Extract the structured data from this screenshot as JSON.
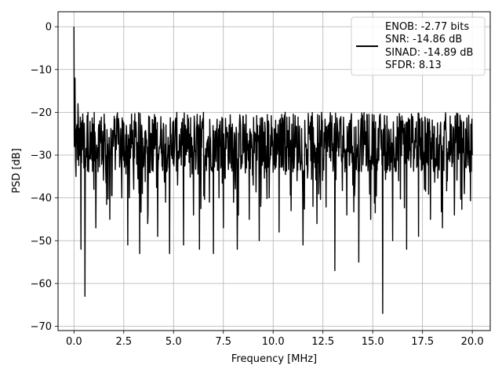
{
  "chart_data": {
    "type": "line",
    "title": "",
    "xlabel": "Frequency [MHz]",
    "ylabel": "PSD [dB]",
    "xlim": [
      -0.8,
      20.9
    ],
    "ylim": [
      -71,
      3.5
    ],
    "xticks": [
      0.0,
      2.5,
      5.0,
      7.5,
      10.0,
      12.5,
      15.0,
      17.5,
      20.0
    ],
    "xtick_labels": [
      "0.0",
      "2.5",
      "5.0",
      "7.5",
      "10.0",
      "12.5",
      "15.0",
      "17.5",
      "20.0"
    ],
    "yticks": [
      0,
      -10,
      -20,
      -30,
      -40,
      -50,
      -60,
      -70
    ],
    "ytick_labels": [
      "0",
      "−10",
      "−20",
      "−30",
      "−40",
      "−50",
      "−60",
      "−70"
    ],
    "grid": true,
    "legend_position": "top-right",
    "line_color": "#000000",
    "legend": [
      "ENOB: -2.77 bits",
      "SNR: -14.86 dB",
      "SINAD: -14.89 dB",
      "SFDR: 8.13"
    ],
    "series": [
      {
        "x": [
          0.0,
          0.02,
          0.05,
          0.1,
          0.2,
          0.3,
          0.35,
          0.4,
          0.5,
          0.55,
          0.7,
          1.0,
          1.1,
          1.3,
          1.5,
          1.8,
          2.2,
          2.4,
          2.7,
          2.8,
          3.0,
          3.3,
          3.4,
          3.7,
          3.9,
          4.2,
          4.4,
          4.6,
          4.8,
          5.0,
          5.2,
          5.5,
          5.8,
          6.0,
          6.3,
          6.5,
          6.8,
          7.0,
          7.3,
          7.5,
          7.9,
          8.2,
          8.5,
          8.8,
          9.0,
          9.3,
          9.6,
          9.8,
          10.0,
          10.3,
          10.6,
          10.9,
          11.2,
          11.5,
          11.8,
          12.0,
          12.2,
          12.5,
          12.8,
          13.1,
          13.4,
          13.7,
          14.0,
          14.3,
          14.6,
          14.9,
          15.2,
          15.5,
          15.8,
          16.0,
          16.3,
          16.7,
          17.0,
          17.3,
          17.6,
          17.9,
          18.2,
          18.5,
          18.8,
          19.1,
          19.4,
          19.6,
          19.8,
          20.0
        ],
        "y": [
          0,
          -28,
          -12,
          -35,
          -18,
          -30,
          -52,
          -22,
          -33,
          -63,
          -20,
          -38,
          -47,
          -22,
          -31,
          -45,
          -25,
          -40,
          -51,
          -26,
          -38,
          -53,
          -23,
          -46,
          -31,
          -49,
          -24,
          -41,
          -53,
          -22,
          -37,
          -51,
          -26,
          -44,
          -52,
          -20,
          -41,
          -53,
          -23,
          -47,
          -33,
          -52,
          -21,
          -45,
          -37,
          -50,
          -24,
          -40,
          -34,
          -48,
          -20,
          -43,
          -36,
          -51,
          -25,
          -42,
          -46,
          -33,
          -28,
          -57,
          -21,
          -44,
          -37,
          -55,
          -22,
          -45,
          -31,
          -67,
          -24,
          -50,
          -36,
          -52,
          -21,
          -49,
          -38,
          -45,
          -26,
          -47,
          -31,
          -44,
          -22,
          -39,
          -27,
          -30
        ]
      }
    ]
  }
}
